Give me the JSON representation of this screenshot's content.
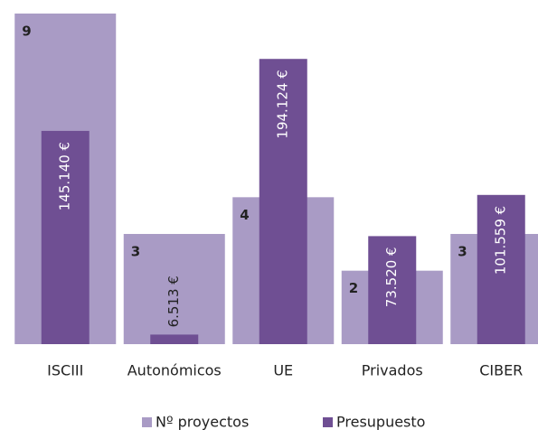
{
  "chart_data": {
    "type": "bar",
    "categories": [
      "ISCIII",
      "Autonómicos",
      "UE",
      "Privados",
      "CIBER"
    ],
    "series": [
      {
        "name": "Nº proyectos",
        "color": "#a99bc5",
        "values": [
          9,
          3,
          4,
          2,
          3
        ]
      },
      {
        "name": "Presupuesto",
        "color": "#6f4f93",
        "axis": "y2",
        "values": [
          145140,
          6513,
          194124,
          73520,
          101559
        ],
        "value_labels": [
          "145.140 €",
          "6.513 €",
          "194.124 €",
          "73.520 €",
          "101.559 €"
        ]
      }
    ],
    "ylim": [
      0,
      9
    ],
    "y2lim": [
      0,
      225000
    ],
    "legend": "bottom"
  }
}
